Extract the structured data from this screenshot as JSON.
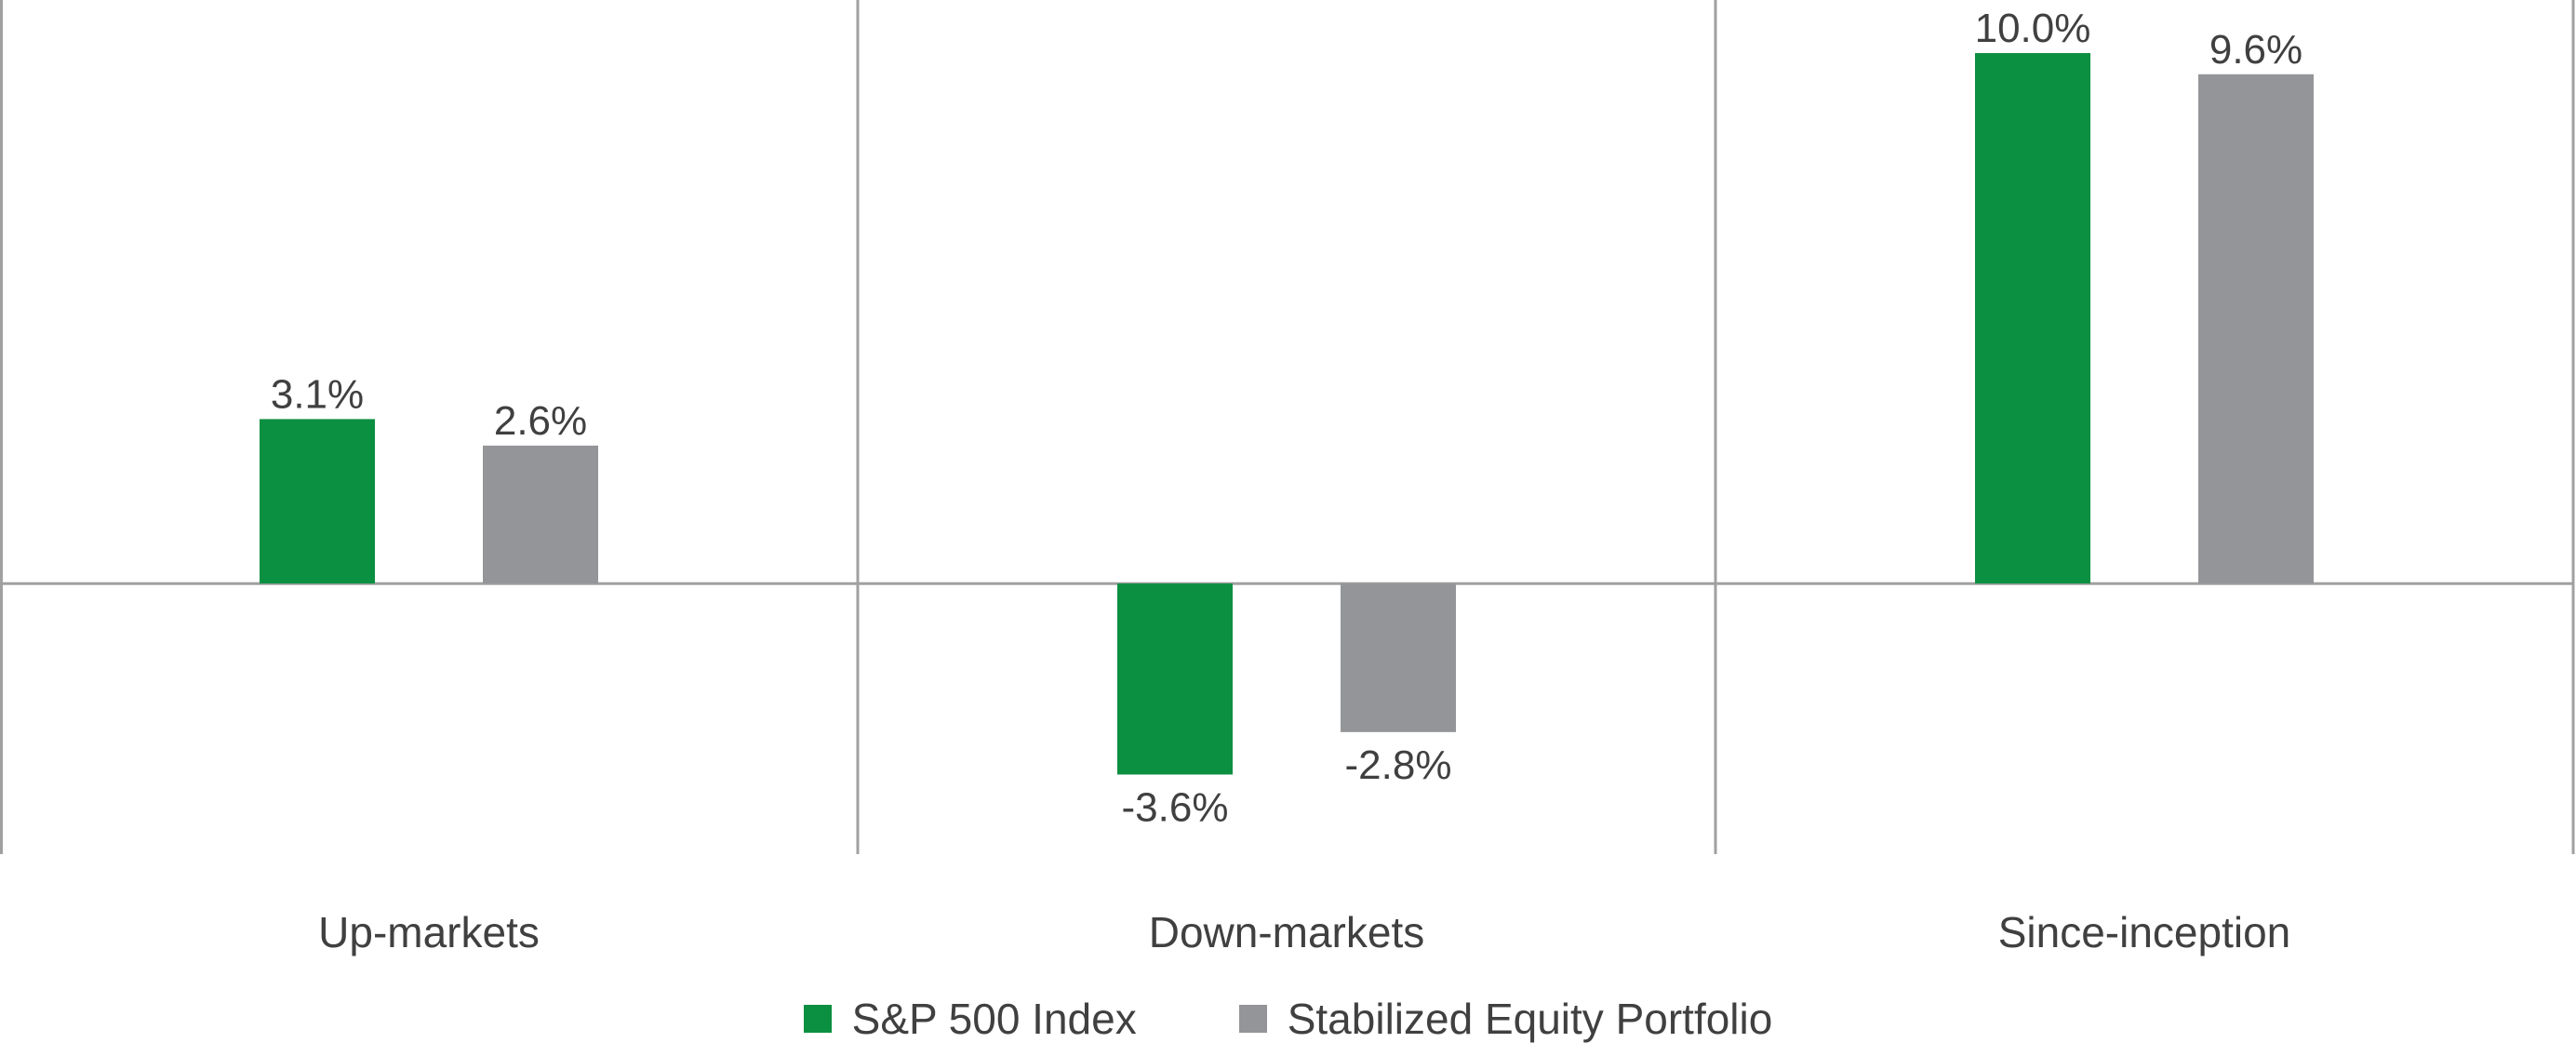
{
  "chart_data": {
    "type": "bar",
    "categories": [
      "Up-markets",
      "Down-markets",
      "Since-inception"
    ],
    "series": [
      {
        "name": "S&P 500 Index",
        "values": [
          3.1,
          -3.6,
          10.0
        ],
        "labels": [
          "3.1%",
          "-3.6%",
          "10.0%"
        ],
        "color": "#0b8f40"
      },
      {
        "name": "Stabilized Equity Portfolio",
        "values": [
          2.6,
          -2.8,
          9.6
        ],
        "labels": [
          "2.6%",
          "-2.8%",
          "9.6%"
        ],
        "color": "#939598"
      }
    ],
    "ylim": [
      -5.1,
      11.0
    ],
    "grid": false,
    "legend_position": "bottom"
  }
}
